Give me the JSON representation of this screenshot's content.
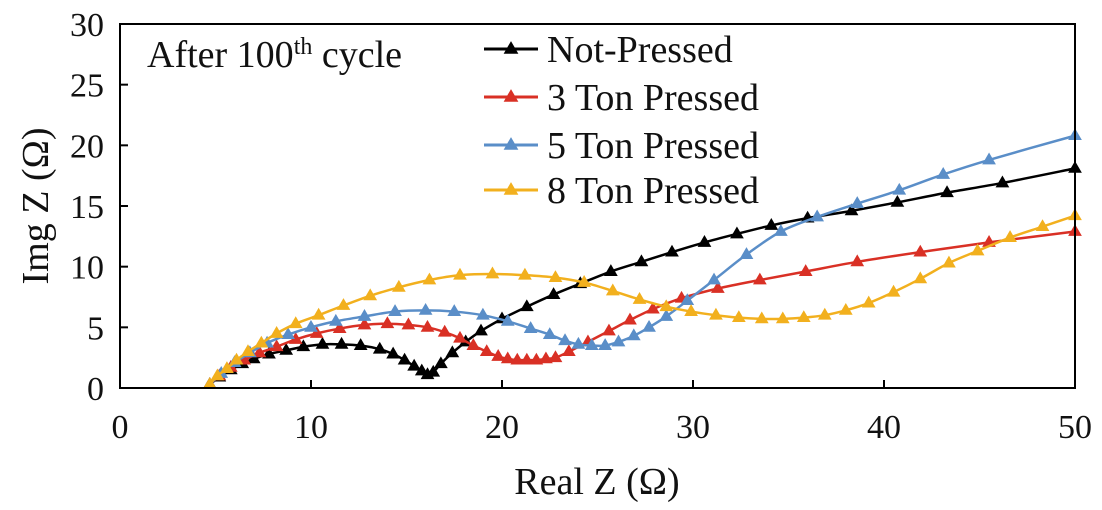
{
  "chart_data": {
    "type": "line",
    "xlabel": "Real Z (Ω)",
    "ylabel": "Img Z (Ω)",
    "xlim": [
      0,
      50
    ],
    "ylim": [
      0,
      30
    ],
    "xticks": [
      0,
      10,
      20,
      30,
      40,
      50
    ],
    "yticks": [
      0,
      5,
      10,
      15,
      20,
      25,
      30
    ],
    "grid": false,
    "legend_position": "top-right",
    "annotation": {
      "prefix": "After 100",
      "superscript": "th",
      "suffix": " cycle"
    },
    "series": [
      {
        "name": "Not-Pressed",
        "color": "#000000",
        "marker": "triangle-up",
        "x": [
          4.7,
          5.2,
          5.8,
          6.4,
          7.0,
          7.8,
          8.7,
          9.6,
          10.6,
          11.6,
          12.6,
          13.6,
          14.3,
          14.9,
          15.4,
          15.8,
          16.1,
          16.4,
          16.8,
          17.4,
          18.1,
          18.9,
          20.0,
          21.3,
          22.7,
          24.1,
          25.7,
          27.3,
          28.9,
          30.6,
          32.3,
          34.1,
          36.0,
          38.3,
          40.7,
          43.3,
          46.2,
          50.0
        ],
        "y": [
          0.3,
          0.9,
          1.5,
          2.0,
          2.4,
          2.8,
          3.1,
          3.4,
          3.6,
          3.6,
          3.5,
          3.2,
          2.8,
          2.3,
          1.8,
          1.4,
          1.1,
          1.3,
          2.0,
          2.9,
          3.8,
          4.7,
          5.7,
          6.7,
          7.7,
          8.6,
          9.6,
          10.4,
          11.2,
          12.0,
          12.7,
          13.4,
          14.0,
          14.6,
          15.3,
          16.1,
          16.9,
          18.1
        ]
      },
      {
        "name": "3 Ton Pressed",
        "color": "#d93025",
        "marker": "triangle-up",
        "x": [
          4.7,
          5.2,
          5.8,
          6.5,
          7.3,
          8.2,
          9.2,
          10.3,
          11.5,
          12.8,
          14.0,
          15.1,
          16.1,
          17.0,
          17.8,
          18.5,
          19.2,
          19.8,
          20.3,
          20.8,
          21.3,
          21.8,
          22.3,
          22.8,
          23.5,
          24.5,
          25.6,
          26.7,
          27.9,
          29.4,
          31.3,
          33.5,
          35.9,
          38.6,
          41.9,
          45.5,
          50.0
        ],
        "y": [
          0.3,
          1.0,
          1.7,
          2.3,
          2.9,
          3.4,
          4.0,
          4.5,
          4.9,
          5.2,
          5.3,
          5.2,
          5.0,
          4.6,
          4.1,
          3.5,
          3.0,
          2.6,
          2.4,
          2.3,
          2.3,
          2.3,
          2.4,
          2.5,
          3.0,
          3.8,
          4.7,
          5.6,
          6.5,
          7.4,
          8.2,
          8.9,
          9.6,
          10.4,
          11.2,
          12.0,
          12.9
        ]
      },
      {
        "name": "5 Ton Pressed",
        "color": "#5a8ec8",
        "marker": "triangle-up",
        "x": [
          4.7,
          5.3,
          6.0,
          6.8,
          7.7,
          8.8,
          10.0,
          11.3,
          12.8,
          14.4,
          16.0,
          17.5,
          19.0,
          20.3,
          21.5,
          22.5,
          23.3,
          24.0,
          24.7,
          25.4,
          26.1,
          26.9,
          27.7,
          28.6,
          29.7,
          31.1,
          32.8,
          34.6,
          36.5,
          38.6,
          40.8,
          43.1,
          45.5,
          50.0
        ],
        "y": [
          0.3,
          1.2,
          2.1,
          2.9,
          3.7,
          4.4,
          5.0,
          5.5,
          5.9,
          6.3,
          6.4,
          6.3,
          6.0,
          5.5,
          4.9,
          4.4,
          3.9,
          3.6,
          3.5,
          3.5,
          3.8,
          4.3,
          5.0,
          5.9,
          7.2,
          8.9,
          11.0,
          12.9,
          14.1,
          15.2,
          16.3,
          17.6,
          18.8,
          20.8
        ]
      },
      {
        "name": "8 Ton Pressed",
        "color": "#f2b01e",
        "marker": "triangle-up",
        "x": [
          4.7,
          5.1,
          5.6,
          6.1,
          6.7,
          7.4,
          8.2,
          9.2,
          10.4,
          11.7,
          13.1,
          14.6,
          16.2,
          17.8,
          19.5,
          21.2,
          22.8,
          24.3,
          25.8,
          27.2,
          28.6,
          29.9,
          31.2,
          32.4,
          33.6,
          34.7,
          35.8,
          36.9,
          38.0,
          39.2,
          40.5,
          41.9,
          43.4,
          44.9,
          46.6,
          48.3,
          50.0
        ],
        "y": [
          0.3,
          1.0,
          1.6,
          2.3,
          3.0,
          3.7,
          4.5,
          5.3,
          6.0,
          6.8,
          7.6,
          8.3,
          8.9,
          9.3,
          9.4,
          9.3,
          9.1,
          8.7,
          8.0,
          7.3,
          6.7,
          6.3,
          6.0,
          5.8,
          5.7,
          5.7,
          5.8,
          6.0,
          6.4,
          7.0,
          7.9,
          9.0,
          10.3,
          11.3,
          12.4,
          13.3,
          14.2
        ]
      }
    ]
  }
}
